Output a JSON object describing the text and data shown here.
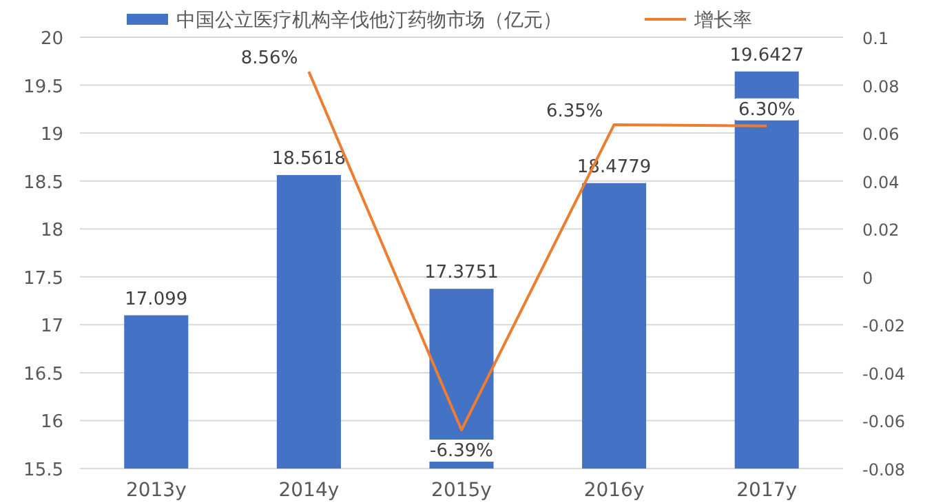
{
  "chart_data": {
    "type": "bar",
    "categories": [
      "2013y",
      "2014y",
      "2015y",
      "2016y",
      "2017y"
    ],
    "series": [
      {
        "name": "中国公立医疗机构辛伐他汀药物市场（亿元）",
        "color": "#4472c4",
        "values": [
          17.099,
          18.5618,
          17.3751,
          18.4779,
          19.6427
        ],
        "value_labels": [
          "17.099",
          "18.5618",
          "17.3751",
          "18.4779",
          "19.6427"
        ]
      },
      {
        "name": "增长率",
        "type": "line",
        "axis": "y2",
        "color": "#ed7d31",
        "values": [
          null,
          0.0856,
          -0.0639,
          0.0635,
          0.063
        ],
        "value_labels": [
          null,
          "8.56%",
          "-6.39%",
          "6.35%",
          "6.30%"
        ]
      }
    ],
    "ylim": [
      15.5,
      20
    ],
    "yticks": [
      15.5,
      16,
      16.5,
      17,
      17.5,
      18,
      18.5,
      19,
      19.5,
      20
    ],
    "y2lim": [
      -0.08,
      0.1
    ],
    "y2ticks": [
      -0.08,
      -0.06,
      -0.04,
      -0.02,
      0,
      0.02,
      0.04,
      0.06,
      0.08,
      0.1
    ],
    "grid": "y",
    "legend": "top",
    "marker": "none",
    "line_style": "solid"
  }
}
